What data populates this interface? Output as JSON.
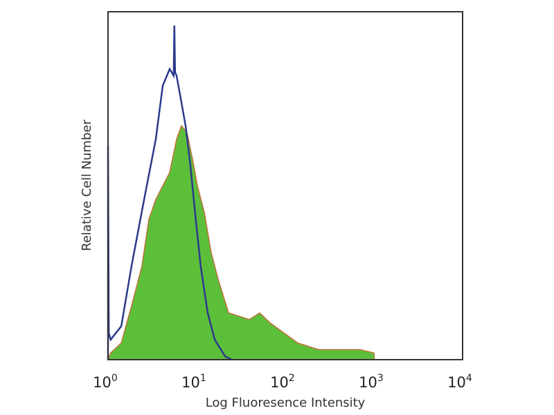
{
  "chart_data": {
    "type": "area",
    "title": "",
    "xlabel": "Log Fluoresence Intensity",
    "ylabel": "Relative Cell Number",
    "xscale": "log",
    "xlim": [
      1,
      10000
    ],
    "ylim": [
      0,
      100
    ],
    "grid": false,
    "x_ticks": [
      {
        "base": "10",
        "exp": "0"
      },
      {
        "base": "10",
        "exp": "1"
      },
      {
        "base": "10",
        "exp": "2"
      },
      {
        "base": "10",
        "exp": "3"
      },
      {
        "base": "10",
        "exp": "4"
      }
    ],
    "series": [
      {
        "style": "filled",
        "fill_color": "#5cbf3a",
        "edge_color": "#c0703a",
        "x": [
          1.0,
          1.07,
          1.41,
          1.84,
          2.41,
          2.89,
          3.46,
          4.14,
          4.96,
          5.93,
          6.73,
          7.78,
          8.98,
          10.2,
          12.2,
          14.6,
          17.5,
          22.9,
          30.0,
          39.3,
          51.4,
          67.3,
          96.5,
          138,
          237,
          407,
          698,
          1000,
          1010
        ],
        "y": [
          0,
          2,
          5,
          16,
          28,
          42,
          48,
          52,
          56,
          66,
          70,
          68,
          60,
          52,
          44,
          32,
          24,
          14,
          13,
          12,
          14,
          11,
          8,
          5,
          3,
          3,
          3,
          2,
          0
        ]
      },
      {
        "style": "line",
        "line_color": "#2a3a8c",
        "x": [
          1.0,
          1.0,
          1.02,
          1.07,
          1.41,
          1.84,
          2.64,
          3.46,
          4.14,
          4.96,
          5.5,
          5.6,
          5.7,
          5.93,
          6.73,
          7.5,
          8.5,
          9.6,
          11.1,
          13.3,
          16.0,
          20.9,
          25.0
        ],
        "y": [
          0,
          64,
          8,
          6,
          10,
          28,
          50,
          66,
          82,
          87,
          85,
          100,
          86,
          85,
          77,
          70,
          58,
          44,
          28,
          14,
          6,
          1,
          0
        ]
      }
    ]
  }
}
